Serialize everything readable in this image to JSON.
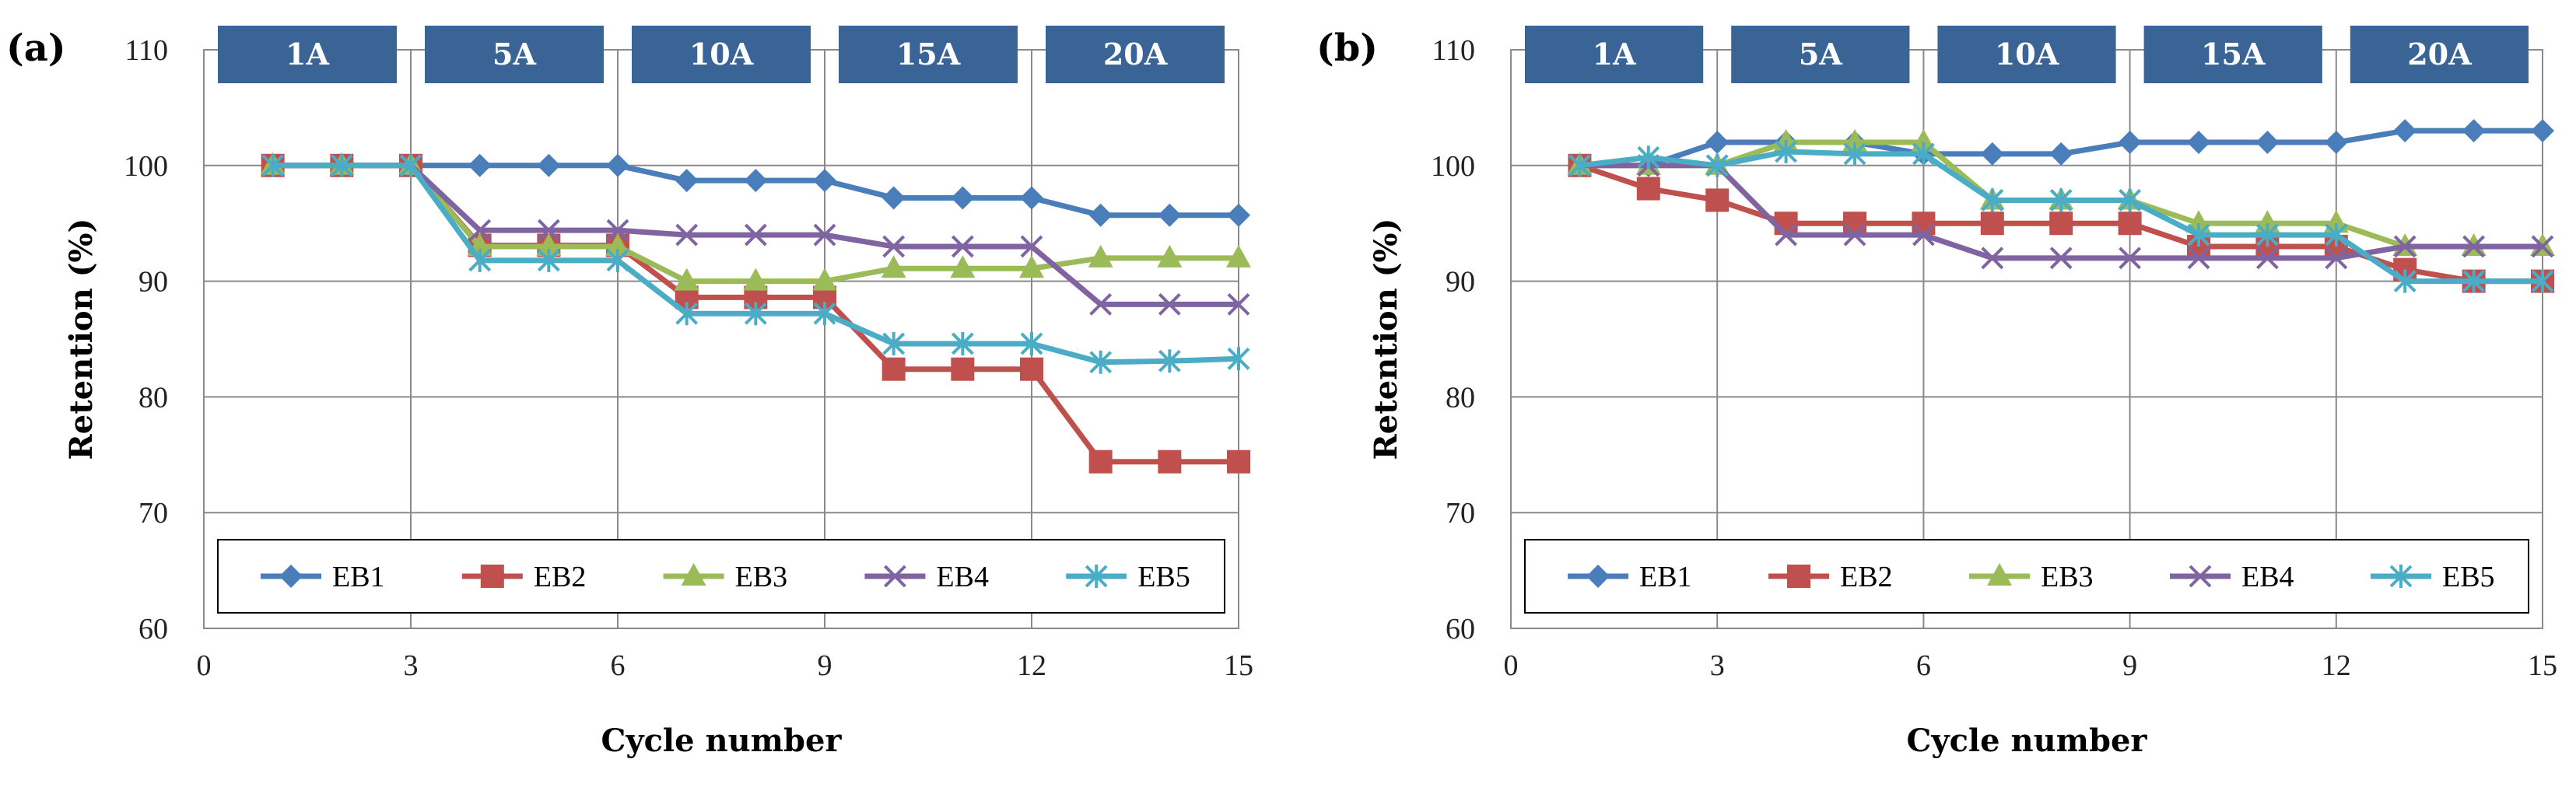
{
  "chart_data": [
    {
      "type": "line",
      "panel_label": "(a)",
      "xlabel": "Cycle number",
      "ylabel": "Retention (%)",
      "xlim": [
        0,
        15
      ],
      "ylim": [
        60,
        110
      ],
      "xticks": [
        0,
        3,
        6,
        9,
        12,
        15
      ],
      "yticks": [
        60,
        70,
        80,
        90,
        100,
        110
      ],
      "grid": true,
      "legend_position": "bottom",
      "current_bands": [
        {
          "label": "1A",
          "from": 0,
          "to": 3
        },
        {
          "label": "5A",
          "from": 3,
          "to": 6
        },
        {
          "label": "10A",
          "from": 6,
          "to": 9
        },
        {
          "label": "15A",
          "from": 9,
          "to": 12
        },
        {
          "label": "20A",
          "from": 12,
          "to": 15
        }
      ],
      "x": [
        1,
        2,
        3,
        4,
        5,
        6,
        7,
        8,
        9,
        10,
        11,
        12,
        13,
        14,
        15
      ],
      "series": [
        {
          "name": "EB1",
          "color": "#4a7ebb",
          "marker": "diamond",
          "values": [
            100,
            100,
            100,
            100,
            100,
            100,
            98.7,
            98.7,
            98.7,
            97.2,
            97.2,
            97.2,
            95.7,
            95.7,
            95.7
          ]
        },
        {
          "name": "EB2",
          "color": "#c0504d",
          "marker": "square",
          "values": [
            100,
            100,
            100,
            93.1,
            93.1,
            93.1,
            88.6,
            88.6,
            88.6,
            82.4,
            82.4,
            82.4,
            74.4,
            74.4,
            74.4
          ]
        },
        {
          "name": "EB3",
          "color": "#9bbb59",
          "marker": "triangle",
          "values": [
            100,
            100,
            100,
            93,
            93,
            93,
            90,
            90,
            90,
            91.1,
            91.1,
            91.1,
            92,
            92,
            92
          ]
        },
        {
          "name": "EB4",
          "color": "#8064a2",
          "marker": "x",
          "values": [
            100,
            100,
            100,
            94.4,
            94.4,
            94.4,
            94,
            94,
            94,
            93,
            93,
            93,
            88,
            88,
            88
          ]
        },
        {
          "name": "EB5",
          "color": "#4bacc6",
          "marker": "star",
          "values": [
            100,
            100,
            100,
            91.8,
            91.8,
            91.8,
            87.2,
            87.2,
            87.2,
            84.6,
            84.6,
            84.6,
            83,
            83.1,
            83.3
          ]
        }
      ]
    },
    {
      "type": "line",
      "panel_label": "(b)",
      "xlabel": "Cycle number",
      "ylabel": "Retention (%)",
      "xlim": [
        0,
        15
      ],
      "ylim": [
        60,
        110
      ],
      "xticks": [
        0,
        3,
        6,
        9,
        12,
        15
      ],
      "yticks": [
        60,
        70,
        80,
        90,
        100,
        110
      ],
      "grid": true,
      "legend_position": "bottom",
      "current_bands": [
        {
          "label": "1A",
          "from": 0,
          "to": 3
        },
        {
          "label": "5A",
          "from": 3,
          "to": 6
        },
        {
          "label": "10A",
          "from": 6,
          "to": 9
        },
        {
          "label": "15A",
          "from": 9,
          "to": 12
        },
        {
          "label": "20A",
          "from": 12,
          "to": 15
        }
      ],
      "x": [
        1,
        2,
        3,
        4,
        5,
        6,
        7,
        8,
        9,
        10,
        11,
        12,
        13,
        14,
        15
      ],
      "series": [
        {
          "name": "EB1",
          "color": "#4a7ebb",
          "marker": "diamond",
          "values": [
            100,
            100,
            102,
            102,
            102,
            101,
            101,
            101,
            102,
            102,
            102,
            102,
            103,
            103,
            103
          ]
        },
        {
          "name": "EB2",
          "color": "#c0504d",
          "marker": "square",
          "values": [
            100,
            98,
            97,
            95,
            95,
            95,
            95,
            95,
            95,
            93,
            93,
            93,
            91,
            90,
            90
          ]
        },
        {
          "name": "EB3",
          "color": "#9bbb59",
          "marker": "triangle",
          "values": [
            100,
            100,
            100,
            102,
            102,
            102,
            97,
            97,
            97,
            95,
            95,
            95,
            93,
            93,
            93
          ]
        },
        {
          "name": "EB4",
          "color": "#8064a2",
          "marker": "x",
          "values": [
            100,
            100,
            100,
            94,
            94,
            94,
            92,
            92,
            92,
            92,
            92,
            92,
            93,
            93,
            93
          ]
        },
        {
          "name": "EB5",
          "color": "#4bacc6",
          "marker": "star",
          "values": [
            100,
            100.7,
            100,
            101.2,
            101,
            101,
            97,
            97,
            97,
            94,
            94,
            94,
            90,
            90,
            90
          ]
        }
      ]
    }
  ],
  "colors": {
    "band_fill": "#3b6496",
    "grid": "#8a8a8a"
  }
}
